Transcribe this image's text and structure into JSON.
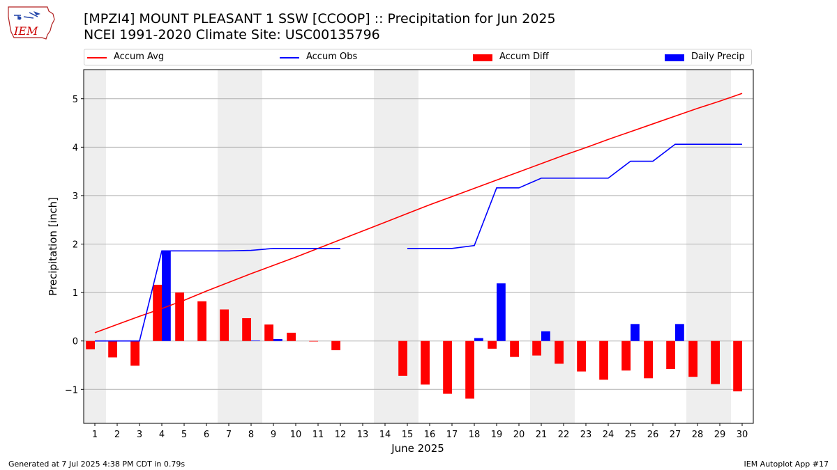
{
  "header": {
    "logo_text": "IEM",
    "title_line1": "[MPZI4] MOUNT PLEASANT 1 SSW [CCOOP] :: Precipitation for Jun 2025",
    "title_line2": "NCEI 1991-2020 Climate Site: USC00135796"
  },
  "legend": {
    "items": [
      {
        "label": "Accum Avg",
        "kind": "line",
        "color": "#ff0000"
      },
      {
        "label": "Accum Obs",
        "kind": "line",
        "color": "#0000ff"
      },
      {
        "label": "Accum Diff",
        "kind": "box",
        "color": "#ff0000"
      },
      {
        "label": "Daily Precip",
        "kind": "box",
        "color": "#0000ff"
      }
    ]
  },
  "footer": {
    "left": "Generated at 7 Jul 2025 4:38 PM CDT in 0.79s",
    "right": "IEM Autoplot App #17"
  },
  "chart_data": {
    "type": "bar",
    "title": "[MPZI4] MOUNT PLEASANT 1 SSW [CCOOP] :: Precipitation for Jun 2025",
    "subtitle": "NCEI 1991-2020 Climate Site: USC00135796",
    "xlabel": "June 2025",
    "ylabel": "Precipitation [inch]",
    "xlim": [
      0.5,
      30.5
    ],
    "ylim": [
      -1.7,
      5.6
    ],
    "yticks": [
      -1,
      0,
      1,
      2,
      3,
      4,
      5
    ],
    "ytick_labels": [
      "−1",
      "0",
      "1",
      "2",
      "3",
      "4",
      "5"
    ],
    "grid": "horizontal",
    "legend_position": "top",
    "days": [
      1,
      2,
      3,
      4,
      5,
      6,
      7,
      8,
      9,
      10,
      11,
      12,
      13,
      14,
      15,
      16,
      17,
      18,
      19,
      20,
      21,
      22,
      23,
      24,
      25,
      26,
      27,
      28,
      29,
      30
    ],
    "weekend_days": [
      1,
      7,
      8,
      14,
      15,
      21,
      22,
      28,
      29
    ],
    "series": [
      {
        "name": "Accum Avg",
        "kind": "line",
        "color": "#ff0000",
        "values": [
          0.17,
          0.34,
          0.51,
          0.67,
          0.84,
          1.03,
          1.21,
          1.39,
          1.56,
          1.73,
          1.91,
          2.09,
          2.27,
          2.45,
          2.63,
          2.81,
          2.98,
          3.15,
          3.32,
          3.49,
          3.66,
          3.83,
          3.99,
          4.16,
          4.32,
          4.48,
          4.64,
          4.8,
          4.95,
          5.11
        ]
      },
      {
        "name": "Accum Obs",
        "kind": "line",
        "color": "#0000ff",
        "values": [
          0,
          0,
          0,
          1.86,
          1.86,
          1.86,
          1.86,
          1.87,
          1.91,
          1.91,
          1.91,
          1.91,
          null,
          null,
          1.91,
          1.91,
          1.91,
          1.97,
          3.16,
          3.16,
          3.36,
          3.36,
          3.36,
          3.36,
          3.71,
          3.71,
          4.06,
          4.06,
          4.06,
          4.06
        ]
      },
      {
        "name": "Accum Diff",
        "kind": "bar",
        "color": "#ff0000",
        "values": [
          -0.17,
          -0.34,
          -0.51,
          1.16,
          1.0,
          0.82,
          0.65,
          0.47,
          0.34,
          0.17,
          -0.01,
          -0.19,
          null,
          null,
          -0.72,
          -0.9,
          -1.09,
          -1.19,
          -0.16,
          -0.33,
          -0.3,
          -0.47,
          -0.63,
          -0.8,
          -0.61,
          -0.77,
          -0.58,
          -0.74,
          -0.89,
          -1.04
        ]
      },
      {
        "name": "Daily Precip",
        "kind": "bar",
        "color": "#0000ff",
        "values": [
          0,
          0,
          0,
          1.86,
          0,
          0,
          0,
          0.01,
          0.04,
          0,
          0,
          0,
          null,
          null,
          0,
          0,
          0,
          0.06,
          1.19,
          0,
          0.2,
          0,
          0,
          0,
          0.35,
          0,
          0.35,
          0,
          0,
          0
        ]
      }
    ]
  }
}
